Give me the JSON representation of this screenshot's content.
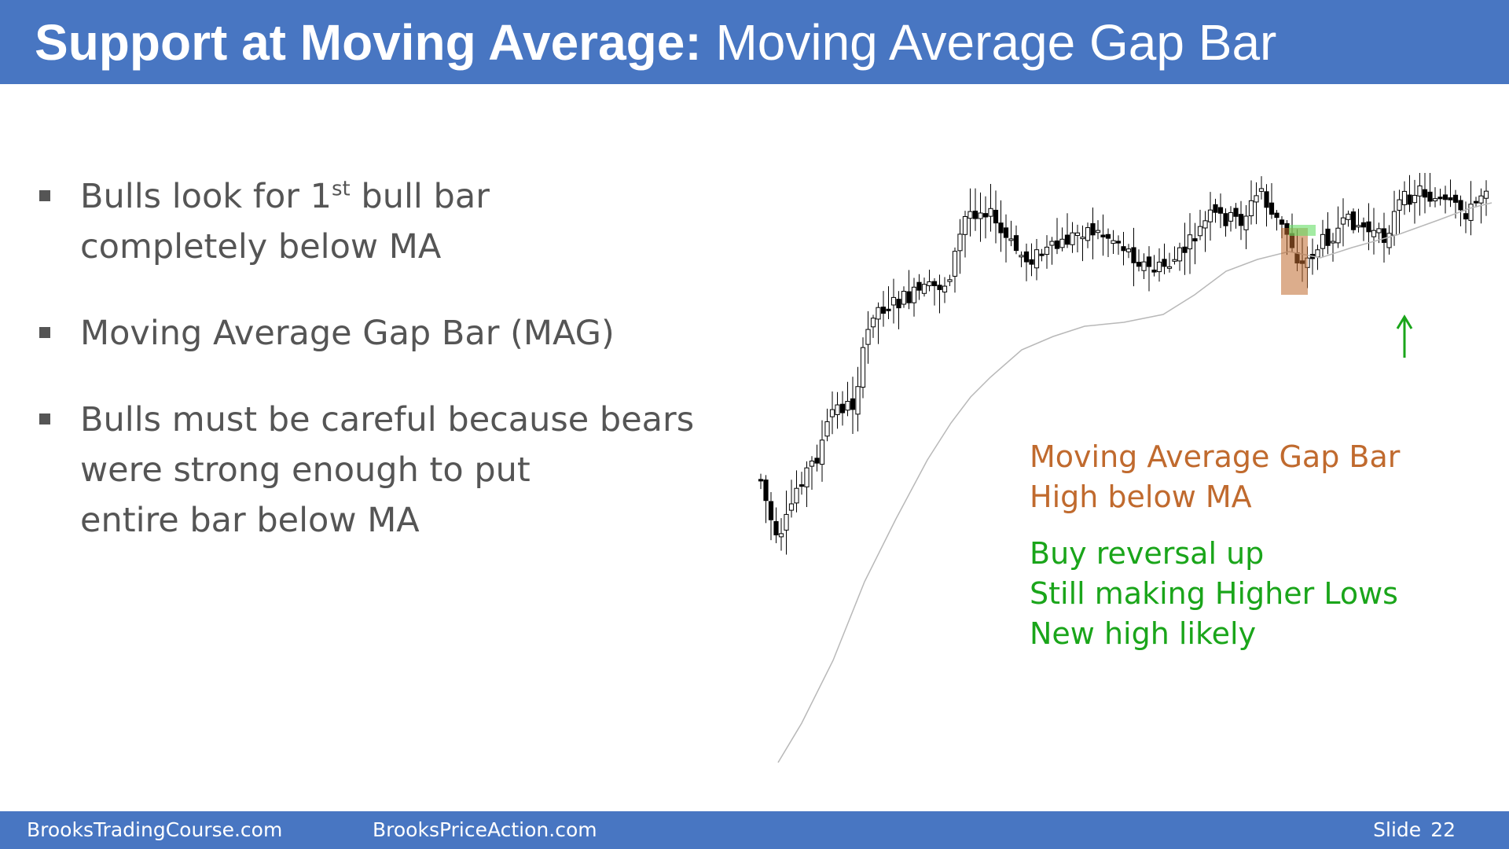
{
  "header": {
    "title_main": "Support at Moving Average:",
    "title_sub": "Moving Average Gap Bar"
  },
  "bullets": [
    {
      "line1_pre": "Bulls look for 1",
      "line1_sup": "st",
      "line1_post": " bull bar",
      "line2": "completely below MA"
    },
    {
      "line1": "Moving Average Gap Bar (MAG)"
    },
    {
      "line1": "Bulls must be careful because bears",
      "line2": "were strong enough to put",
      "line3": "entire bar below MA"
    }
  ],
  "chart_annotations": {
    "orange_line1": "Moving Average Gap Bar",
    "orange_line2": "High below MA",
    "green_line1": "Buy reversal up",
    "green_line2": "Still making Higher Lows",
    "green_line3": "New high likely"
  },
  "colors": {
    "header_bg": "#4876c2",
    "orange": "#c06a2e",
    "green": "#1aa51a",
    "candle": "#000000",
    "ma_line": "#b8b8b8"
  },
  "footer": {
    "site1": "BrooksTradingCourse.com",
    "site2": "BrooksPriceAction.com",
    "slide_label": "Slide",
    "slide_number": "22"
  }
}
